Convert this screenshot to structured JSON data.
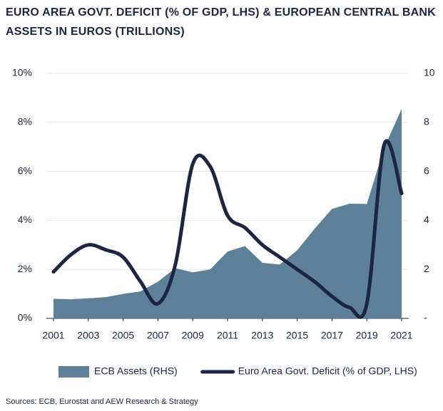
{
  "chart_data": {
    "type": "line",
    "title": [
      "EURO AREA GOVT. DEFICIT (% OF GDP, LHS) & EUROPEAN CENTRAL BANK",
      "ASSETS IN EUROS (TRILLIONS)"
    ],
    "x": [
      2001,
      2002,
      2003,
      2004,
      2005,
      2006,
      2007,
      2008,
      2009,
      2010,
      2011,
      2012,
      2013,
      2014,
      2015,
      2016,
      2017,
      2018,
      2019,
      2020,
      2021
    ],
    "xlim": [
      2001,
      2021
    ],
    "xticks": [
      2001,
      2003,
      2005,
      2007,
      2009,
      2011,
      2013,
      2015,
      2017,
      2019,
      2021
    ],
    "ylim": [
      0,
      10
    ],
    "yticks": [
      {
        "value": 0,
        "label": "0%"
      },
      {
        "value": 2,
        "label": "2%"
      },
      {
        "value": 4,
        "label": "4%"
      },
      {
        "value": 6,
        "label": "6%"
      },
      {
        "value": 8,
        "label": "8%"
      },
      {
        "value": 10,
        "label": "10%"
      }
    ],
    "y2lim": [
      0,
      10
    ],
    "y2ticks": [
      {
        "value": 0,
        "label": "-"
      },
      2,
      4,
      6,
      8,
      10
    ],
    "grid": true,
    "legend": "bottom",
    "series": [
      {
        "name": "ECB Assets (RHS)",
        "type": "area",
        "axis": "y2",
        "color": "#5e8199",
        "values": [
          0.8,
          0.78,
          0.82,
          0.87,
          1.0,
          1.1,
          1.5,
          2.05,
          1.88,
          2.0,
          2.73,
          2.95,
          2.27,
          2.2,
          2.78,
          3.66,
          4.47,
          4.68,
          4.67,
          6.97,
          8.55
        ]
      },
      {
        "name": "Euro Area Govt. Deficit (% of GDP, LHS)",
        "type": "line",
        "color": "#1c2541",
        "values": [
          1.9,
          2.6,
          3.0,
          2.8,
          2.5,
          1.5,
          0.6,
          2.2,
          6.3,
          6.2,
          4.2,
          3.7,
          3.0,
          2.5,
          2.0,
          1.5,
          0.9,
          0.45,
          0.6,
          7.1,
          5.1
        ]
      }
    ],
    "source": "Sources: ECB, Eurostat and AEW Research & Strategy"
  }
}
